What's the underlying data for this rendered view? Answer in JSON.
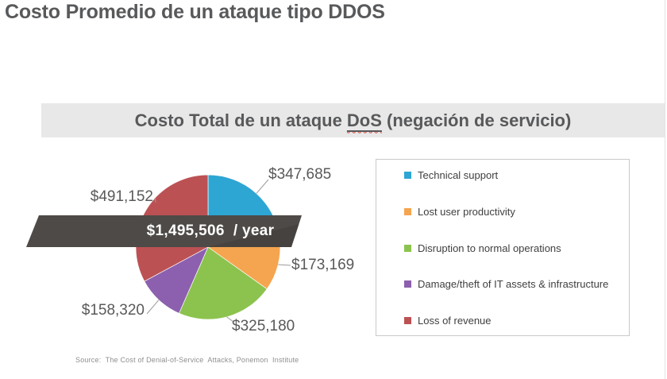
{
  "title": "Costo Promedio de un ataque tipo DDOS",
  "section_header": {
    "part1": "Costo Total de un ataque ",
    "highlighted_word": "DoS",
    "part2": " (negación de servicio)"
  },
  "ribbon": {
    "label": "$1,495,506  / year"
  },
  "source_note": "Source:  The Cost of Denial-of-Service  Attacks, Ponemon  Institute",
  "colors": {
    "ribbon": "#4e4a47",
    "header_bg": "#e8e8e8",
    "title_text": "#58595b",
    "leader_line": "#9a9a9a"
  },
  "chart_data": {
    "type": "pie",
    "title": "Costo Total de un ataque DoS (negación de servicio)",
    "center_label": "$1,495,506  / year",
    "total_value": 1495506,
    "currency": "USD",
    "start_angle": "12 o'clock",
    "direction": "clockwise",
    "legend_position": "right",
    "slices": [
      {
        "name": "Technical support",
        "value": 347685,
        "label": "$347,685",
        "color": "#2ea6d3"
      },
      {
        "name": "Lost user productivity",
        "value": 173169,
        "label": "$173,169",
        "color": "#f5a54f"
      },
      {
        "name": "Disruption to normal operations",
        "value": 325180,
        "label": "$325,180",
        "color": "#8cc34e"
      },
      {
        "name": "Damage/theft of IT assets & infrastructure",
        "value": 158320,
        "label": "$158,320",
        "color": "#8c60ae"
      },
      {
        "name": "Loss of revenue",
        "value": 491152,
        "label": "$491,152",
        "color": "#bc5154"
      }
    ]
  }
}
